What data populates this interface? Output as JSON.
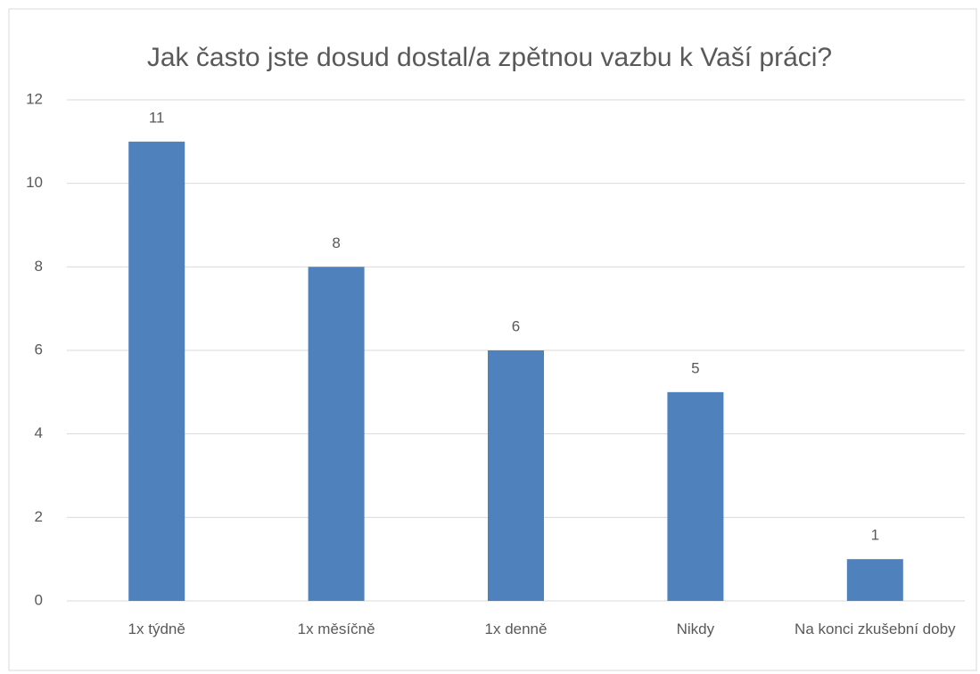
{
  "chart_data": {
    "type": "bar",
    "title": "Jak často jste dosud dostal/a zpětnou vazbu k Vaší práci?",
    "categories": [
      "1x týdně",
      "1x měsíčně",
      "1x denně",
      "Nikdy",
      "Na konci zkušební doby"
    ],
    "values": [
      11,
      8,
      6,
      5,
      1
    ],
    "color": "#4f81bd",
    "ylim": [
      0,
      12
    ],
    "yticks": [
      0,
      2,
      4,
      6,
      8,
      10,
      12
    ],
    "grid": true
  }
}
